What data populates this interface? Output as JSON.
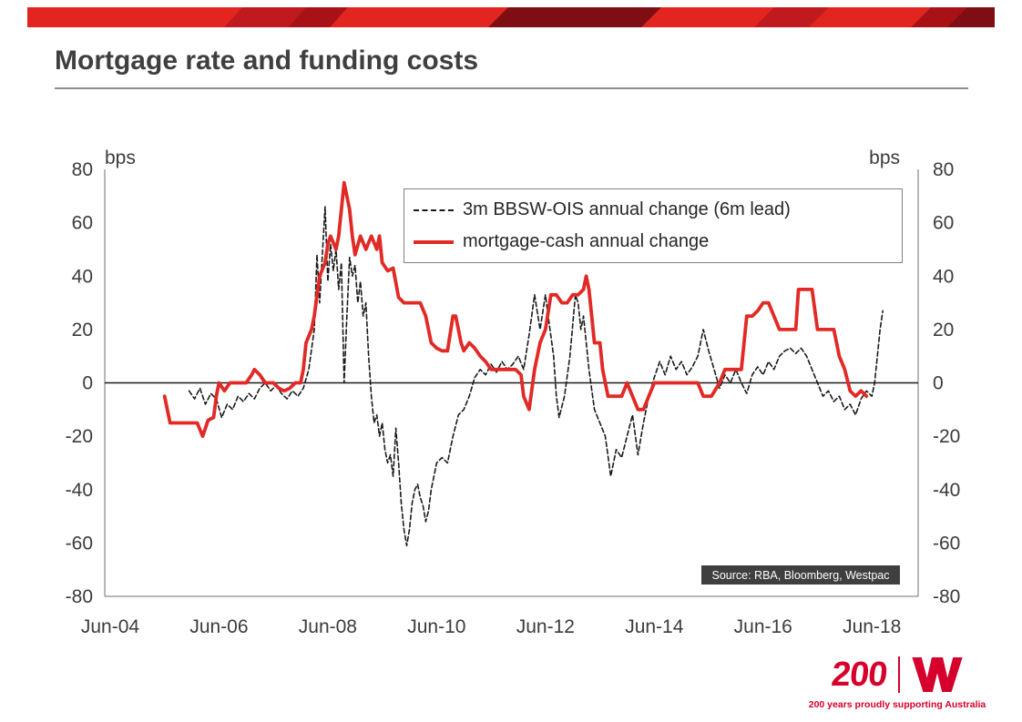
{
  "slide": {
    "title": "Mortgage rate and funding costs",
    "source_note": "Source: RBA, Bloomberg, Westpac",
    "footer": {
      "brand_number": "200",
      "tagline": "200 years proudly supporting Australia"
    },
    "colors": {
      "brand_red": "#D5002B",
      "banner_red": "#E2261F",
      "banner_mid": "#C01A1E",
      "banner_dark": "#A81217",
      "banner_maroon": "#7E0E13"
    }
  },
  "chart_data": {
    "type": "line",
    "title": "",
    "unit_label_left": "bps",
    "unit_label_right": "bps",
    "ylim": [
      -80,
      80
    ],
    "yticks": [
      80,
      60,
      40,
      20,
      0,
      -20,
      -40,
      -60,
      -80
    ],
    "xlim": [
      2004.4,
      2019.35
    ],
    "xticks": [
      {
        "x": 2004.5,
        "label": "Jun-04"
      },
      {
        "x": 2006.5,
        "label": "Jun-06"
      },
      {
        "x": 2008.5,
        "label": "Jun-08"
      },
      {
        "x": 2010.5,
        "label": "Jun-10"
      },
      {
        "x": 2012.5,
        "label": "Jun-12"
      },
      {
        "x": 2014.5,
        "label": "Jun-14"
      },
      {
        "x": 2016.5,
        "label": "Jun-16"
      },
      {
        "x": 2018.5,
        "label": "Jun-18"
      }
    ],
    "grid": false,
    "zero_line": true,
    "legend_position": "inside-top",
    "series": [
      {
        "name": "3m BBSW-OIS annual change (6m lead)",
        "color": "#1a1a1a",
        "style": "dashed",
        "width": 1.6,
        "points": [
          [
            2005.95,
            -3
          ],
          [
            2006.05,
            -6
          ],
          [
            2006.15,
            -2
          ],
          [
            2006.25,
            -8
          ],
          [
            2006.35,
            -4
          ],
          [
            2006.45,
            -6
          ],
          [
            2006.55,
            -13
          ],
          [
            2006.65,
            -8
          ],
          [
            2006.75,
            -10
          ],
          [
            2006.85,
            -5
          ],
          [
            2006.95,
            -7
          ],
          [
            2007.05,
            -4
          ],
          [
            2007.15,
            -6
          ],
          [
            2007.25,
            -2
          ],
          [
            2007.35,
            0
          ],
          [
            2007.45,
            -3
          ],
          [
            2007.55,
            -1
          ],
          [
            2007.65,
            -4
          ],
          [
            2007.75,
            -6
          ],
          [
            2007.85,
            -3
          ],
          [
            2007.95,
            -5
          ],
          [
            2008.05,
            -2
          ],
          [
            2008.15,
            5
          ],
          [
            2008.25,
            20
          ],
          [
            2008.3,
            48
          ],
          [
            2008.35,
            30
          ],
          [
            2008.45,
            66
          ],
          [
            2008.5,
            38
          ],
          [
            2008.55,
            52
          ],
          [
            2008.6,
            42
          ],
          [
            2008.65,
            50
          ],
          [
            2008.7,
            35
          ],
          [
            2008.75,
            45
          ],
          [
            2008.8,
            0
          ],
          [
            2008.85,
            25
          ],
          [
            2008.9,
            47
          ],
          [
            2008.95,
            40
          ],
          [
            2009.0,
            44
          ],
          [
            2009.05,
            30
          ],
          [
            2009.1,
            38
          ],
          [
            2009.15,
            25
          ],
          [
            2009.2,
            30
          ],
          [
            2009.25,
            10
          ],
          [
            2009.3,
            -5
          ],
          [
            2009.35,
            -15
          ],
          [
            2009.4,
            -12
          ],
          [
            2009.45,
            -20
          ],
          [
            2009.5,
            -15
          ],
          [
            2009.55,
            -25
          ],
          [
            2009.6,
            -30
          ],
          [
            2009.65,
            -27
          ],
          [
            2009.7,
            -35
          ],
          [
            2009.75,
            -17
          ],
          [
            2009.8,
            -30
          ],
          [
            2009.85,
            -45
          ],
          [
            2009.9,
            -55
          ],
          [
            2009.95,
            -61
          ],
          [
            2010.0,
            -55
          ],
          [
            2010.05,
            -45
          ],
          [
            2010.1,
            -40
          ],
          [
            2010.15,
            -38
          ],
          [
            2010.2,
            -43
          ],
          [
            2010.25,
            -46
          ],
          [
            2010.3,
            -52
          ],
          [
            2010.35,
            -48
          ],
          [
            2010.4,
            -40
          ],
          [
            2010.5,
            -30
          ],
          [
            2010.6,
            -28
          ],
          [
            2010.7,
            -30
          ],
          [
            2010.8,
            -20
          ],
          [
            2010.9,
            -12
          ],
          [
            2011.0,
            -10
          ],
          [
            2011.1,
            -5
          ],
          [
            2011.2,
            2
          ],
          [
            2011.3,
            5
          ],
          [
            2011.4,
            3
          ],
          [
            2011.5,
            7
          ],
          [
            2011.6,
            4
          ],
          [
            2011.7,
            8
          ],
          [
            2011.8,
            5
          ],
          [
            2011.9,
            7
          ],
          [
            2012.0,
            10
          ],
          [
            2012.1,
            5
          ],
          [
            2012.2,
            18
          ],
          [
            2012.3,
            33
          ],
          [
            2012.4,
            20
          ],
          [
            2012.5,
            33
          ],
          [
            2012.55,
            25
          ],
          [
            2012.65,
            10
          ],
          [
            2012.7,
            -5
          ],
          [
            2012.75,
            -13
          ],
          [
            2012.85,
            -5
          ],
          [
            2012.95,
            10
          ],
          [
            2013.05,
            33
          ],
          [
            2013.1,
            30
          ],
          [
            2013.15,
            20
          ],
          [
            2013.2,
            25
          ],
          [
            2013.3,
            5
          ],
          [
            2013.4,
            -10
          ],
          [
            2013.5,
            -15
          ],
          [
            2013.6,
            -20
          ],
          [
            2013.7,
            -35
          ],
          [
            2013.8,
            -25
          ],
          [
            2013.9,
            -28
          ],
          [
            2014.0,
            -20
          ],
          [
            2014.1,
            -12
          ],
          [
            2014.2,
            -27
          ],
          [
            2014.3,
            -15
          ],
          [
            2014.4,
            -5
          ],
          [
            2014.5,
            2
          ],
          [
            2014.6,
            8
          ],
          [
            2014.7,
            3
          ],
          [
            2014.8,
            10
          ],
          [
            2014.9,
            5
          ],
          [
            2015.0,
            8
          ],
          [
            2015.1,
            3
          ],
          [
            2015.2,
            6
          ],
          [
            2015.3,
            10
          ],
          [
            2015.4,
            20
          ],
          [
            2015.5,
            12
          ],
          [
            2015.6,
            5
          ],
          [
            2015.7,
            -2
          ],
          [
            2015.8,
            3
          ],
          [
            2015.9,
            0
          ],
          [
            2016.0,
            5
          ],
          [
            2016.1,
            0
          ],
          [
            2016.2,
            -4
          ],
          [
            2016.3,
            3
          ],
          [
            2016.4,
            6
          ],
          [
            2016.5,
            3
          ],
          [
            2016.6,
            8
          ],
          [
            2016.7,
            5
          ],
          [
            2016.8,
            10
          ],
          [
            2016.9,
            12
          ],
          [
            2017.0,
            13
          ],
          [
            2017.1,
            11
          ],
          [
            2017.2,
            13
          ],
          [
            2017.3,
            10
          ],
          [
            2017.4,
            5
          ],
          [
            2017.5,
            0
          ],
          [
            2017.6,
            -5
          ],
          [
            2017.7,
            -3
          ],
          [
            2017.8,
            -7
          ],
          [
            2017.9,
            -5
          ],
          [
            2018.0,
            -10
          ],
          [
            2018.1,
            -8
          ],
          [
            2018.2,
            -12
          ],
          [
            2018.3,
            -6
          ],
          [
            2018.4,
            -3
          ],
          [
            2018.5,
            -5
          ],
          [
            2018.55,
            0
          ],
          [
            2018.6,
            10
          ],
          [
            2018.65,
            20
          ],
          [
            2018.7,
            27
          ]
        ]
      },
      {
        "name": "mortgage-cash annual change",
        "color": "#E12A26",
        "style": "solid",
        "width": 3.8,
        "points": [
          [
            2005.5,
            -5
          ],
          [
            2005.6,
            -15
          ],
          [
            2005.75,
            -15
          ],
          [
            2005.9,
            -15
          ],
          [
            2006.0,
            -15
          ],
          [
            2006.1,
            -15
          ],
          [
            2006.2,
            -20
          ],
          [
            2006.3,
            -14
          ],
          [
            2006.4,
            -13
          ],
          [
            2006.45,
            -5
          ],
          [
            2006.5,
            0
          ],
          [
            2006.6,
            -3
          ],
          [
            2006.7,
            0
          ],
          [
            2006.85,
            0
          ],
          [
            2007.0,
            0
          ],
          [
            2007.1,
            3
          ],
          [
            2007.15,
            5
          ],
          [
            2007.25,
            3
          ],
          [
            2007.35,
            0
          ],
          [
            2007.5,
            0
          ],
          [
            2007.6,
            -2
          ],
          [
            2007.7,
            -3
          ],
          [
            2007.8,
            -2
          ],
          [
            2007.9,
            0
          ],
          [
            2008.0,
            0
          ],
          [
            2008.05,
            5
          ],
          [
            2008.1,
            15
          ],
          [
            2008.2,
            20
          ],
          [
            2008.25,
            25
          ],
          [
            2008.35,
            40
          ],
          [
            2008.45,
            45
          ],
          [
            2008.5,
            52
          ],
          [
            2008.55,
            55
          ],
          [
            2008.65,
            50
          ],
          [
            2008.7,
            55
          ],
          [
            2008.8,
            75
          ],
          [
            2008.9,
            65
          ],
          [
            2008.95,
            55
          ],
          [
            2009.0,
            48
          ],
          [
            2009.1,
            55
          ],
          [
            2009.2,
            50
          ],
          [
            2009.3,
            55
          ],
          [
            2009.4,
            50
          ],
          [
            2009.45,
            55
          ],
          [
            2009.5,
            45
          ],
          [
            2009.6,
            42
          ],
          [
            2009.7,
            43
          ],
          [
            2009.8,
            32
          ],
          [
            2009.9,
            30
          ],
          [
            2010.0,
            30
          ],
          [
            2010.1,
            30
          ],
          [
            2010.2,
            30
          ],
          [
            2010.3,
            25
          ],
          [
            2010.4,
            15
          ],
          [
            2010.5,
            13
          ],
          [
            2010.6,
            12
          ],
          [
            2010.7,
            12
          ],
          [
            2010.8,
            25
          ],
          [
            2010.85,
            25
          ],
          [
            2010.95,
            15
          ],
          [
            2011.0,
            12
          ],
          [
            2011.1,
            15
          ],
          [
            2011.2,
            13
          ],
          [
            2011.3,
            10
          ],
          [
            2011.4,
            8
          ],
          [
            2011.5,
            5
          ],
          [
            2011.65,
            5
          ],
          [
            2011.8,
            5
          ],
          [
            2011.95,
            5
          ],
          [
            2012.05,
            3
          ],
          [
            2012.1,
            -5
          ],
          [
            2012.2,
            -10
          ],
          [
            2012.3,
            5
          ],
          [
            2012.4,
            15
          ],
          [
            2012.5,
            20
          ],
          [
            2012.6,
            33
          ],
          [
            2012.7,
            33
          ],
          [
            2012.8,
            30
          ],
          [
            2012.9,
            30
          ],
          [
            2013.0,
            33
          ],
          [
            2013.1,
            33
          ],
          [
            2013.2,
            35
          ],
          [
            2013.25,
            40
          ],
          [
            2013.3,
            35
          ],
          [
            2013.4,
            15
          ],
          [
            2013.5,
            15
          ],
          [
            2013.55,
            5
          ],
          [
            2013.65,
            -5
          ],
          [
            2013.8,
            -5
          ],
          [
            2013.9,
            -5
          ],
          [
            2014.0,
            0
          ],
          [
            2014.1,
            -5
          ],
          [
            2014.2,
            -10
          ],
          [
            2014.3,
            -10
          ],
          [
            2014.4,
            -5
          ],
          [
            2014.5,
            0
          ],
          [
            2014.7,
            0
          ],
          [
            2014.9,
            0
          ],
          [
            2015.1,
            0
          ],
          [
            2015.3,
            0
          ],
          [
            2015.4,
            -5
          ],
          [
            2015.55,
            -5
          ],
          [
            2015.7,
            0
          ],
          [
            2015.8,
            5
          ],
          [
            2015.95,
            5
          ],
          [
            2016.1,
            5
          ],
          [
            2016.2,
            25
          ],
          [
            2016.3,
            25
          ],
          [
            2016.4,
            27
          ],
          [
            2016.5,
            30
          ],
          [
            2016.6,
            30
          ],
          [
            2016.7,
            25
          ],
          [
            2016.8,
            20
          ],
          [
            2016.95,
            20
          ],
          [
            2017.1,
            20
          ],
          [
            2017.15,
            35
          ],
          [
            2017.3,
            35
          ],
          [
            2017.4,
            35
          ],
          [
            2017.5,
            20
          ],
          [
            2017.65,
            20
          ],
          [
            2017.8,
            20
          ],
          [
            2017.9,
            10
          ],
          [
            2018.0,
            5
          ],
          [
            2018.1,
            -3
          ],
          [
            2018.2,
            -5
          ],
          [
            2018.3,
            -3
          ],
          [
            2018.4,
            -5
          ]
        ]
      }
    ]
  }
}
